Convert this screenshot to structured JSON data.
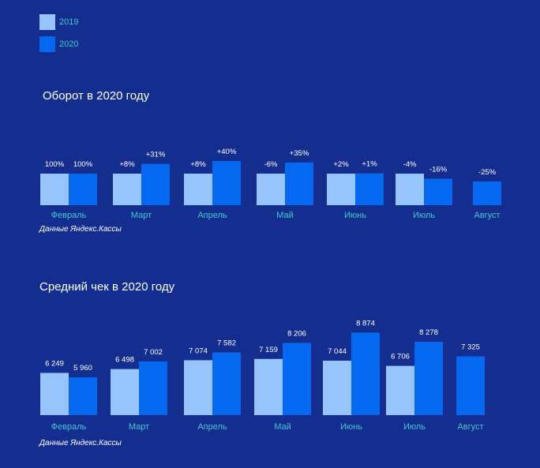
{
  "legend": [
    {
      "label": "2019",
      "color": "#97c5fb"
    },
    {
      "label": "2020",
      "color": "#0568f0"
    }
  ],
  "chart_data": [
    {
      "type": "bar",
      "title": "Оборот в 2020 году",
      "source": "Данные Яндекс.Кассы",
      "categories": [
        "Февраль",
        "Март",
        "Апрель",
        "Май",
        "Июнь",
        "Июль",
        "Август"
      ],
      "series": [
        {
          "name": "2019",
          "values": [
            100,
            100,
            100,
            100,
            100,
            100,
            null
          ],
          "labels": [
            "100%",
            "+8%",
            "+8%",
            "-6%",
            "+2%",
            "-4%",
            ""
          ]
        },
        {
          "name": "2020",
          "values": [
            100,
            131,
            140,
            135,
            101,
            84,
            75
          ],
          "labels": [
            "100%",
            "+31%",
            "+40%",
            "+35%",
            "+1%",
            "-16%",
            "-25%"
          ]
        }
      ],
      "legend_position": "top-left"
    },
    {
      "type": "bar",
      "title": "Средний чек в 2020 году",
      "source": "Данные Яндекс.Кассы",
      "categories": [
        "Февраль",
        "Март",
        "Апрель",
        "Май",
        "Июнь",
        "Июль",
        "Август"
      ],
      "series": [
        {
          "name": "2019",
          "values": [
            6249,
            6498,
            7074,
            7159,
            7044,
            6706,
            null
          ],
          "labels": [
            "6 249",
            "6 498",
            "7 074",
            "7 159",
            "7 044",
            "6 706",
            ""
          ]
        },
        {
          "name": "2020",
          "values": [
            5960,
            7002,
            7582,
            8206,
            8874,
            8278,
            7325
          ],
          "labels": [
            "5 960",
            "7 002",
            "7 582",
            "8 206",
            "8 874",
            "8 278",
            "7 325"
          ]
        }
      ],
      "legend_position": "top-left"
    }
  ]
}
